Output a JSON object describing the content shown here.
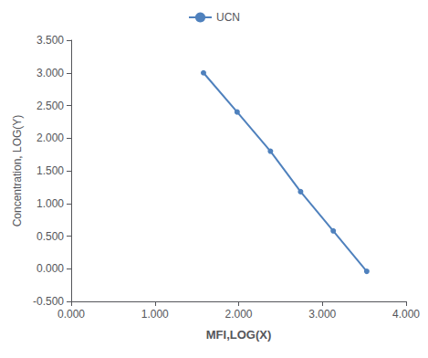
{
  "chart_data": {
    "type": "line",
    "x_label": "MFI,LOG(X)",
    "y_label": "Concentration, LOG(Y)",
    "x": [
      1.58,
      1.982,
      2.38,
      2.74,
      3.13,
      3.53
    ],
    "series": [
      {
        "name": "UCN",
        "color": "#4f81bd",
        "marker": "circle",
        "values": [
          3.0,
          2.4,
          1.8,
          1.18,
          0.58,
          -0.04
        ]
      }
    ],
    "xlim": [
      0.0,
      4.0
    ],
    "ylim": [
      -0.5,
      3.5
    ],
    "xticks": [
      {
        "value": 0.0,
        "label": "0.000"
      },
      {
        "value": 1.0,
        "label": "1.000"
      },
      {
        "value": 2.0,
        "label": "2.000"
      },
      {
        "value": 3.0,
        "label": "3.000"
      },
      {
        "value": 4.0,
        "label": "4.000"
      }
    ],
    "yticks": [
      {
        "value": -0.5,
        "label": "-0.500"
      },
      {
        "value": 0.0,
        "label": "0.000"
      },
      {
        "value": 0.5,
        "label": "0.500"
      },
      {
        "value": 1.0,
        "label": "1.000"
      },
      {
        "value": 1.5,
        "label": "1.500"
      },
      {
        "value": 2.0,
        "label": "2.000"
      },
      {
        "value": 2.5,
        "label": "2.500"
      },
      {
        "value": 3.0,
        "label": "3.000"
      },
      {
        "value": 3.5,
        "label": "3.500"
      }
    ],
    "grid": false,
    "legend": "top"
  }
}
